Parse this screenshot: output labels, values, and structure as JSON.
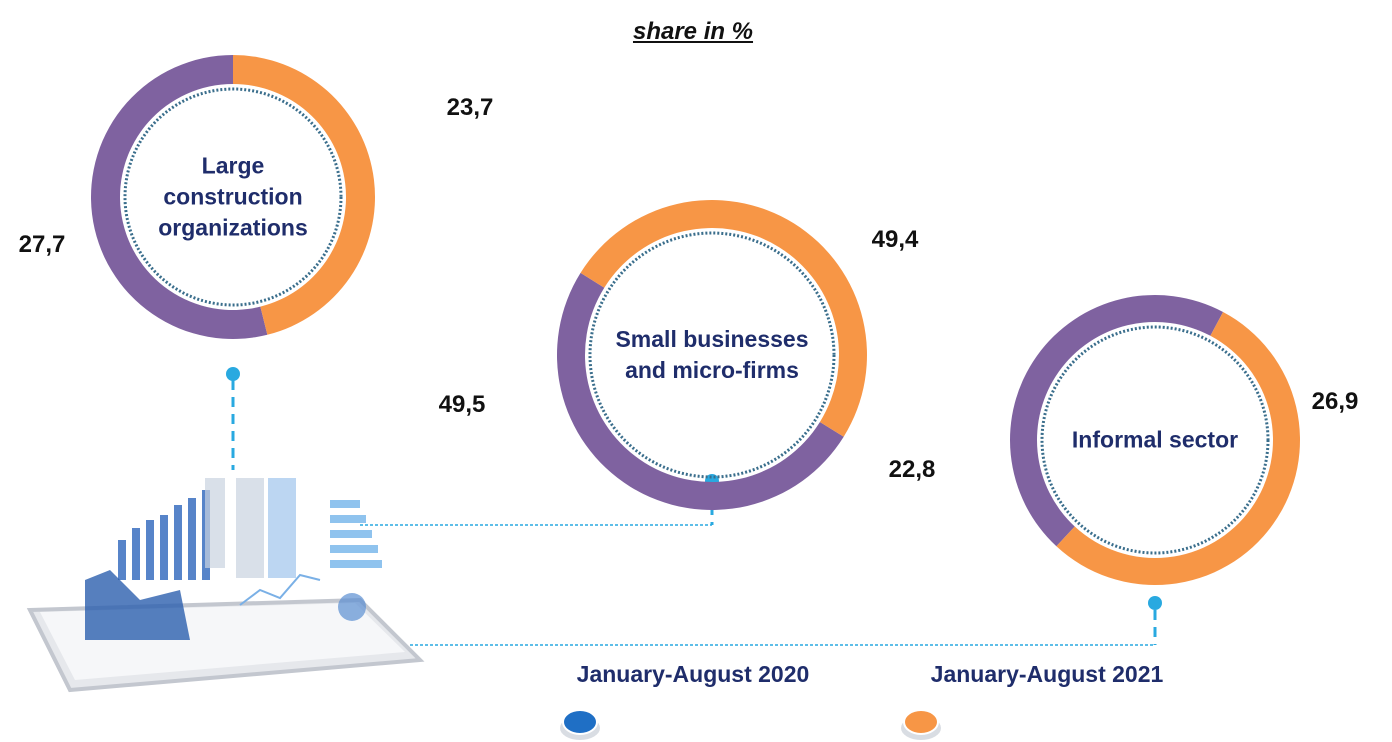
{
  "title": "share in %",
  "legend": [
    {
      "label": "January-August 2020",
      "color": "#1f6fc5"
    },
    {
      "label": "January-August 2021",
      "color": "#f79646"
    }
  ],
  "chart_data": [
    {
      "type": "donut",
      "label": "Large construction organizations",
      "values": [
        27.7,
        23.7
      ],
      "value_labels": [
        "27,7",
        "23,7"
      ],
      "colors": [
        "#7f62a0",
        "#f79646"
      ]
    },
    {
      "type": "donut",
      "label": "Small businesses and micro-firms",
      "values": [
        49.5,
        49.4
      ],
      "value_labels": [
        "49,5",
        "49,4"
      ],
      "colors": [
        "#7f62a0",
        "#f79646"
      ]
    },
    {
      "type": "donut",
      "label": "Informal sector",
      "values": [
        22.8,
        26.9
      ],
      "value_labels": [
        "22,8",
        "26,9"
      ],
      "colors": [
        "#7f62a0",
        "#f79646"
      ]
    }
  ]
}
